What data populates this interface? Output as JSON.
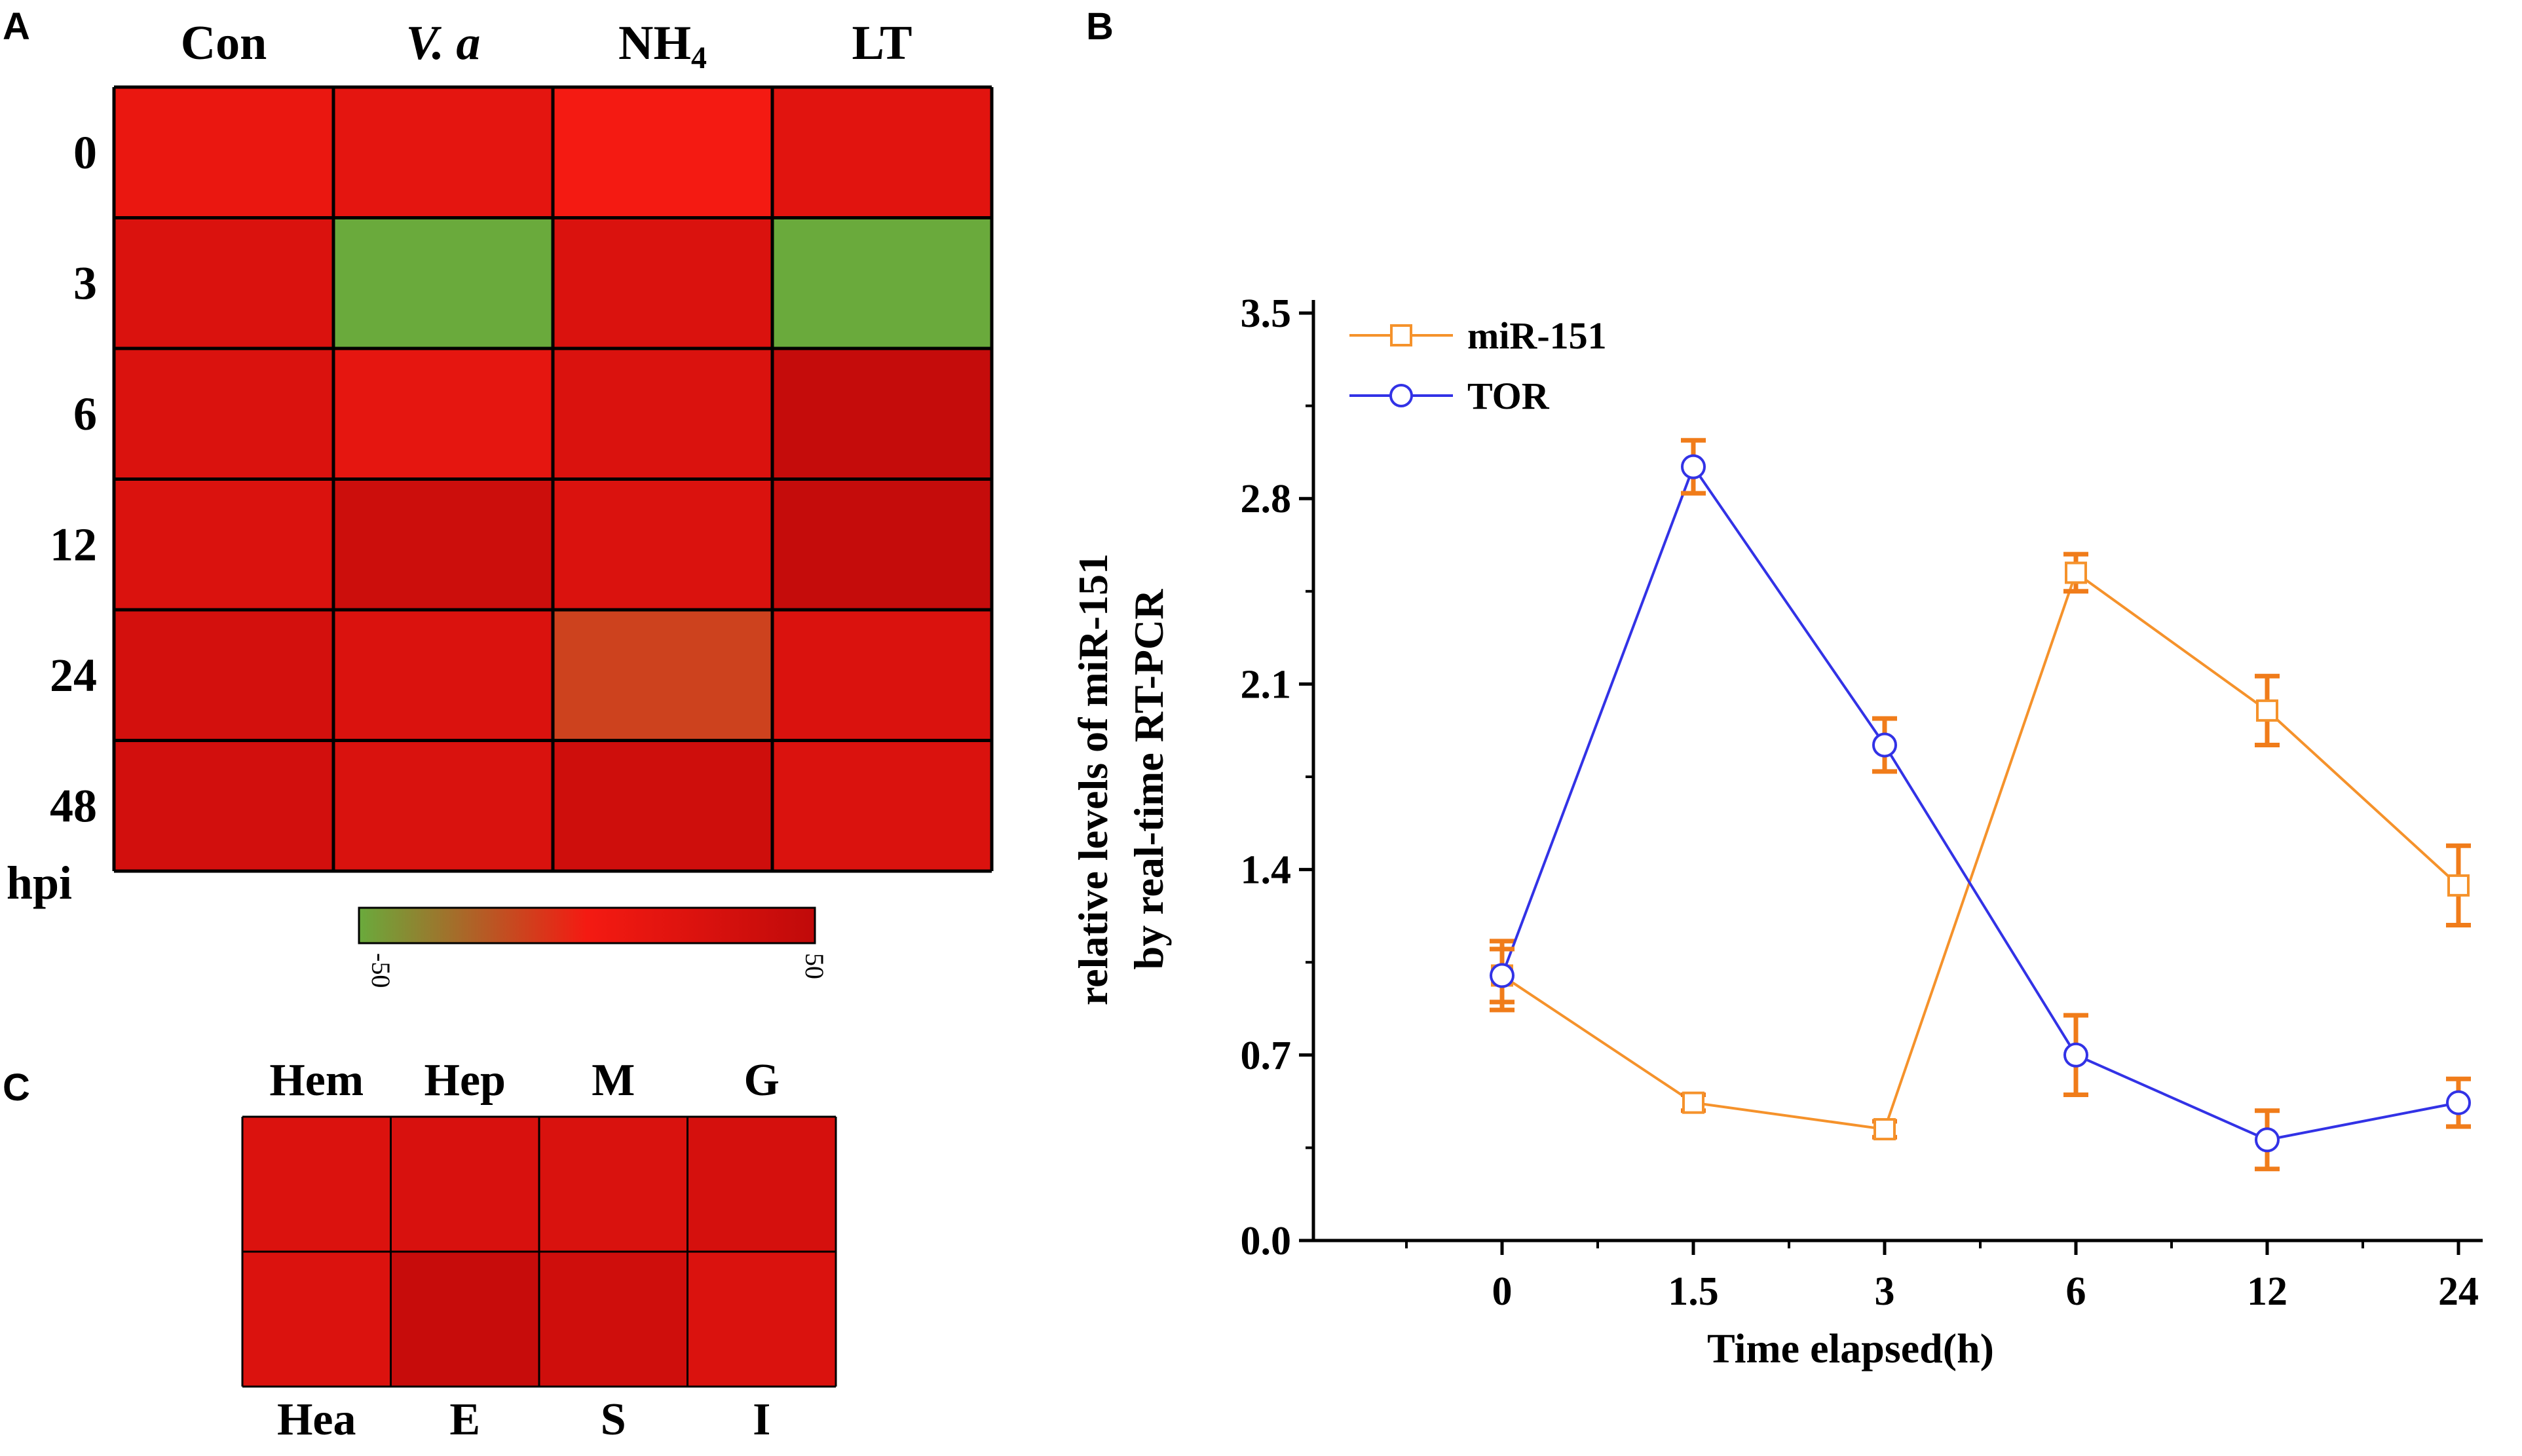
{
  "panels": {
    "A": "A",
    "B": "B",
    "C": "C"
  },
  "chart_data": [
    {
      "panel": "A",
      "type": "heatmap",
      "columns": [
        "Con",
        "V. a",
        "NH4",
        "LT"
      ],
      "rows": [
        "0",
        "3",
        "6",
        "12",
        "24",
        "48"
      ],
      "row_axis_label": "hpi",
      "values": [
        [
          10,
          15,
          0,
          18
        ],
        [
          25,
          -50,
          25,
          -50
        ],
        [
          25,
          14,
          25,
          45
        ],
        [
          25,
          38,
          25,
          45
        ],
        [
          32,
          25,
          -14,
          25
        ],
        [
          33,
          26,
          37,
          25
        ]
      ],
      "colorbar": {
        "min": -50,
        "max": 50,
        "min_label": "-50",
        "max_label": "50",
        "colors": [
          "#6aaa3c",
          "#f41a12",
          "#c00a0a"
        ]
      }
    },
    {
      "panel": "B",
      "type": "line",
      "categories": [
        "0",
        "1.5",
        "3",
        "6",
        "12",
        "24"
      ],
      "series": [
        {
          "name": "miR-151",
          "color": "#f5922b",
          "marker": "square",
          "values": [
            1.0,
            0.52,
            0.42,
            2.52,
            2.0,
            1.34
          ],
          "errors": [
            0.13,
            0.03,
            0.03,
            0.07,
            0.13,
            0.15
          ]
        },
        {
          "name": "TOR",
          "color": "#3232e6",
          "marker": "circle",
          "values": [
            1.0,
            2.92,
            1.87,
            0.7,
            0.38,
            0.52
          ],
          "errors": [
            0.1,
            0.1,
            0.1,
            0.15,
            0.11,
            0.09
          ]
        }
      ],
      "error_bar_color": "#f07c1a",
      "yticks": [
        "0.0",
        "0.7",
        "1.4",
        "2.1",
        "2.8",
        "3.5"
      ],
      "ylim": [
        0,
        3.5
      ],
      "xlabel": "Time elapsed(h)",
      "ylabel_lines": [
        "relative levels of miR-151",
        "by real-time RT-PCR"
      ],
      "legend_position": "top-left"
    },
    {
      "panel": "C",
      "type": "heatmap",
      "top_labels": [
        "Hem",
        "Hep",
        "M",
        "G"
      ],
      "bottom_labels": [
        "Hea",
        "E",
        "S",
        "I"
      ],
      "values": [
        [
          24,
          27,
          26,
          30
        ],
        [
          24,
          43,
          36,
          25
        ]
      ],
      "scale_min": -50,
      "scale_max": 50
    }
  ]
}
